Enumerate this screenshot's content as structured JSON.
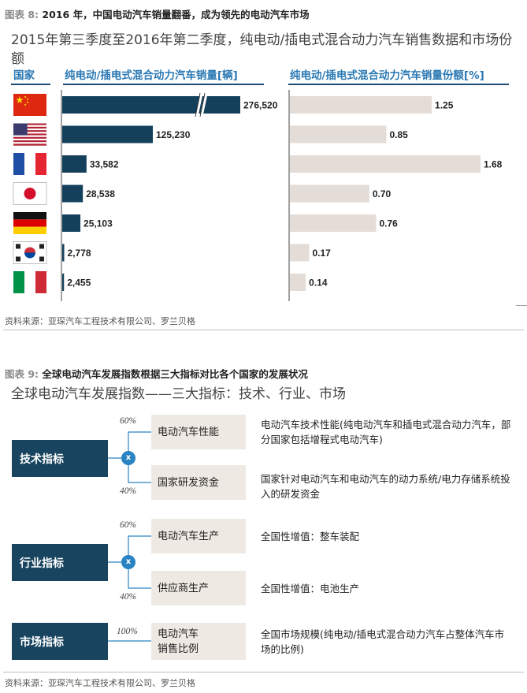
{
  "fig8": {
    "label_prefix": "图表 8:",
    "label_text": "2016 年，中国电动汽车销量翻番，成为领先的电动汽车市场",
    "title": "2015年第三季度至2016年第二季度，纯电动/插电式混合动力汽车销售数据和市场份额",
    "col_country": "国家",
    "col_sales": "纯电动/插电式混合动力汽车销量[辆]",
    "col_share": "纯电动/插电式混合动力汽车销量份额[%]",
    "source": "资料来源：亚琛汽车工程技术有限公司、罗兰贝格"
  },
  "chart_data": {
    "type": "bar",
    "orientation": "horizontal",
    "categories": [
      "China",
      "United States",
      "France",
      "Japan",
      "Germany",
      "South Korea",
      "Italy"
    ],
    "flag_icons": [
      "china-flag-icon",
      "usa-flag-icon",
      "france-flag-icon",
      "japan-flag-icon",
      "germany-flag-icon",
      "south-korea-flag-icon",
      "italy-flag-icon"
    ],
    "series": [
      {
        "values": [
          276520,
          125230,
          33582,
          28538,
          25103,
          2778,
          2455
        ],
        "labels": [
          "276,520",
          "125,230",
          "33,582",
          "28,538",
          "25,103",
          "2,778",
          "2,455"
        ]
      },
      {
        "values": [
          1.25,
          0.85,
          1.68,
          0.7,
          0.76,
          0.17,
          0.14
        ],
        "labels": [
          "1.25",
          "0.85",
          "1.68",
          "0.70",
          "0.76",
          "0.17",
          "0.14"
        ]
      }
    ],
    "axis_break": "China sales bar",
    "colors": {
      "sales": "#15405c",
      "share": "#e3dcd7"
    },
    "grid": false,
    "legend": "none"
  },
  "fig9": {
    "label_prefix": "图表 9:",
    "label_text": "全球电动汽车发展指数根据三大指标对比各个国家的发展状况",
    "title": "全球电动汽车发展指数——三大指标：技术、行业、市场",
    "source": "资料来源：亚琛汽车工程技术有限公司、罗兰贝格",
    "indicators": [
      {
        "name": "技术指标",
        "subs": [
          {
            "pct": "60%",
            "label": "电动汽车性能",
            "desc": "电动汽车技术性能(纯电动汽车和插电式混合动力汽车，部分国家包括增程式电动汽车)"
          },
          {
            "pct": "40%",
            "label": "国家研发资金",
            "desc": "国家针对电动汽车和电动汽车的动力系统/电力存储系统投入的研发资金"
          }
        ]
      },
      {
        "name": "行业指标",
        "subs": [
          {
            "pct": "60%",
            "label": "电动汽车生产",
            "desc": "全国性增值：整车装配"
          },
          {
            "pct": "40%",
            "label": "供应商生产",
            "desc": "全国性增值：电池生产"
          }
        ]
      },
      {
        "name": "市场指标",
        "subs": [
          {
            "pct": "100%",
            "label": "电动汽车销售比例",
            "desc": "全国市场规模(纯电动/插电式混合动力汽车占整体汽车市场的比例)"
          }
        ]
      }
    ],
    "multiply_symbol": "x",
    "colors": {
      "indicator": "#18445f",
      "sub": "#efe9e3",
      "connector": "#2a83c2"
    }
  }
}
